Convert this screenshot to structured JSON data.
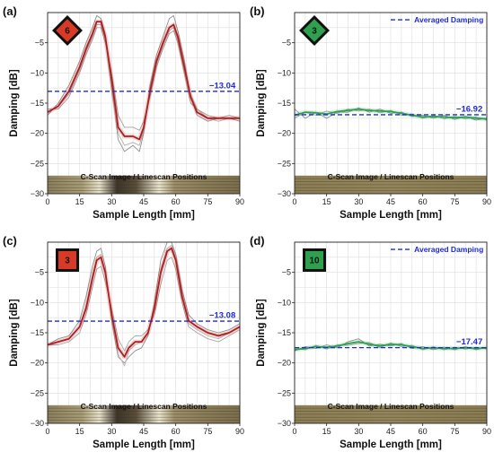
{
  "figure": {
    "panels": [
      {
        "letter": "(a)",
        "badge": {
          "number": "6",
          "shape": "diamond",
          "color": "#d93a26"
        },
        "x_label": "Sample Length [mm]",
        "y_label": "Damping [dB]",
        "averaged_value": "−13.04",
        "legend_label": "",
        "cscan_label": "C-Scan Image / Linescan Positions",
        "cscan_style": "defect"
      },
      {
        "letter": "(b)",
        "badge": {
          "number": "3",
          "shape": "diamond",
          "color": "#2ea04f"
        },
        "x_label": "Sample Length [mm]",
        "y_label": "Damping [dB]",
        "averaged_value": "−16.92",
        "legend_label": "Averaged Damping",
        "cscan_label": "C-Scan Image / Linescan Positions",
        "cscan_style": "uniform"
      },
      {
        "letter": "(c)",
        "badge": {
          "number": "3",
          "shape": "square",
          "color": "#d93a26"
        },
        "x_label": "Sample Length [mm]",
        "y_label": "Damping [dB]",
        "averaged_value": "−13.08",
        "legend_label": "",
        "cscan_label": "C-Scan Image / Linescan Positions",
        "cscan_style": "defect"
      },
      {
        "letter": "(d)",
        "badge": {
          "number": "10",
          "shape": "square",
          "color": "#2ea04f"
        },
        "x_label": "Sample Length [mm]",
        "y_label": "Damping [dB]",
        "averaged_value": "−17.47",
        "legend_label": "Averaged Damping",
        "cscan_label": "C-Scan Image / Linescan Positions",
        "cscan_style": "uniform"
      }
    ]
  },
  "chart_data": [
    {
      "type": "line",
      "panel": "(a)",
      "xlabel": "Sample Length [mm]",
      "ylabel": "Damping [dB]",
      "xlim": [
        0,
        90
      ],
      "ylim": [
        -30,
        0
      ],
      "xticks": [
        0,
        15,
        30,
        45,
        60,
        75,
        90
      ],
      "yticks": [
        -30,
        -25,
        -20,
        -15,
        -10,
        -5
      ],
      "grid": true,
      "averaged_damping": -13.04,
      "series": [
        {
          "color": "#b01e1e",
          "x": [
            0,
            5,
            10,
            15,
            18,
            21,
            23,
            25,
            27,
            30,
            33,
            36,
            40,
            43,
            45,
            48,
            51,
            54,
            57,
            59,
            61,
            64,
            67,
            70,
            75,
            80,
            85,
            90
          ],
          "y": [
            -16.5,
            -15.5,
            -13,
            -9,
            -6,
            -3.5,
            -1.5,
            -1.5,
            -4,
            -11,
            -19,
            -20.5,
            -20.5,
            -21,
            -19,
            -13,
            -8,
            -5,
            -2.5,
            -2,
            -4,
            -9,
            -14,
            -16.5,
            -17.5,
            -17.5,
            -17.5,
            -17.5
          ]
        },
        {
          "color": "#909090",
          "x": [
            0,
            5,
            10,
            15,
            18,
            21,
            23,
            25,
            27,
            30,
            33,
            36,
            40,
            43,
            45,
            48,
            51,
            54,
            57,
            59,
            61,
            64,
            67,
            70,
            75,
            80,
            85,
            90
          ],
          "y": [
            -17,
            -15,
            -12,
            -8,
            -5,
            -2.5,
            -0.5,
            -1,
            -3.5,
            -12,
            -21,
            -23,
            -22,
            -23,
            -20,
            -12,
            -7,
            -4,
            -1,
            -0.5,
            -3,
            -8,
            -14,
            -17,
            -18,
            -17.5,
            -17.5,
            -18
          ]
        },
        {
          "color": "#a0a0a0",
          "x": [
            0,
            5,
            10,
            15,
            18,
            21,
            23,
            25,
            27,
            30,
            33,
            36,
            40,
            43,
            45,
            48,
            51,
            54,
            57,
            59,
            61,
            64,
            67,
            70,
            75,
            80,
            85,
            90
          ],
          "y": [
            -16,
            -16,
            -14,
            -10,
            -7,
            -4.5,
            -2.5,
            -2.5,
            -5,
            -10,
            -17,
            -19,
            -19,
            -19.5,
            -18,
            -14,
            -9,
            -6,
            -3.5,
            -3,
            -5,
            -10,
            -15,
            -16,
            -17,
            -17.5,
            -17,
            -17.5
          ]
        },
        {
          "color": "#b0b0b0",
          "x": [
            0,
            5,
            10,
            15,
            18,
            21,
            23,
            25,
            27,
            30,
            33,
            36,
            40,
            43,
            45,
            48,
            51,
            54,
            57,
            59,
            61,
            64,
            67,
            70,
            75,
            80,
            85,
            90
          ],
          "y": [
            -16.5,
            -15.5,
            -13.5,
            -9.5,
            -6.5,
            -4,
            -2,
            -2,
            -4.5,
            -13,
            -20,
            -22,
            -21.5,
            -22,
            -19.5,
            -13.5,
            -8.5,
            -5.5,
            -3,
            -2.5,
            -4.5,
            -9.5,
            -13.5,
            -16,
            -17.5,
            -18,
            -17.5,
            -17.5
          ]
        }
      ]
    },
    {
      "type": "line",
      "panel": "(b)",
      "xlabel": "Sample Length [mm]",
      "ylabel": "Damping [dB]",
      "xlim": [
        0,
        90
      ],
      "ylim": [
        -30,
        0
      ],
      "xticks": [
        0,
        15,
        30,
        45,
        60,
        75,
        90
      ],
      "yticks": [
        -30,
        -25,
        -20,
        -15,
        -10,
        -5
      ],
      "grid": true,
      "legend": "top-right",
      "averaged_damping": -16.92,
      "series": [
        {
          "color": "#2ea04f",
          "x": [
            0,
            5,
            10,
            15,
            20,
            25,
            30,
            35,
            40,
            45,
            50,
            55,
            60,
            65,
            70,
            75,
            80,
            85,
            90
          ],
          "y": [
            -17,
            -16.5,
            -16.6,
            -16.8,
            -16.4,
            -16.2,
            -16,
            -16.2,
            -16.3,
            -16.4,
            -16.7,
            -17,
            -17.3,
            -17.2,
            -17.3,
            -17.4,
            -17.3,
            -17.5,
            -17.6
          ]
        },
        {
          "color": "#909090",
          "x": [
            0,
            5,
            10,
            15,
            20,
            25,
            30,
            35,
            40,
            45,
            50,
            55,
            60,
            65,
            70,
            75,
            80,
            85,
            90
          ],
          "y": [
            -16,
            -17.5,
            -16.5,
            -17.5,
            -16.5,
            -16.5,
            -15.8,
            -16.5,
            -16,
            -16.7,
            -16.5,
            -17.2,
            -17,
            -17.5,
            -17,
            -17.7,
            -17.2,
            -17.8,
            -17.5
          ]
        },
        {
          "color": "#a8a8a8",
          "x": [
            0,
            5,
            10,
            15,
            20,
            25,
            30,
            35,
            40,
            45,
            50,
            55,
            60,
            65,
            70,
            75,
            80,
            85,
            90
          ],
          "y": [
            -17.5,
            -16.5,
            -17,
            -16.3,
            -16.7,
            -16,
            -16.3,
            -16,
            -16.6,
            -16.2,
            -17,
            -16.8,
            -17.5,
            -17,
            -17.6,
            -17.2,
            -17.6,
            -17.3,
            -17.8
          ]
        }
      ]
    },
    {
      "type": "line",
      "panel": "(c)",
      "xlabel": "Sample Length [mm]",
      "ylabel": "Damping [dB]",
      "xlim": [
        0,
        90
      ],
      "ylim": [
        -30,
        0
      ],
      "xticks": [
        0,
        15,
        30,
        45,
        60,
        75,
        90
      ],
      "yticks": [
        -30,
        -25,
        -20,
        -15,
        -10,
        -5
      ],
      "grid": true,
      "averaged_damping": -13.08,
      "series": [
        {
          "color": "#b01e1e",
          "x": [
            0,
            5,
            10,
            15,
            18,
            21,
            23,
            25,
            27,
            30,
            33,
            36,
            38,
            41,
            44,
            47,
            50,
            53,
            56,
            58,
            60,
            63,
            66,
            70,
            75,
            80,
            85,
            90
          ],
          "y": [
            -17,
            -16.5,
            -16,
            -14,
            -11,
            -6,
            -3,
            -2.5,
            -5,
            -12,
            -17.5,
            -19,
            -17.5,
            -16.5,
            -16.5,
            -15,
            -11,
            -5,
            -1.5,
            -1,
            -3,
            -9,
            -13,
            -14,
            -15,
            -15.5,
            -15,
            -14
          ]
        },
        {
          "color": "#909090",
          "x": [
            0,
            5,
            10,
            15,
            18,
            21,
            23,
            25,
            27,
            30,
            33,
            36,
            38,
            41,
            44,
            47,
            50,
            53,
            56,
            58,
            60,
            63,
            66,
            70,
            75,
            80,
            85,
            90
          ],
          "y": [
            -17,
            -16,
            -15.5,
            -13,
            -9,
            -4,
            -1.5,
            -1,
            -4,
            -13,
            -19,
            -20,
            -19,
            -18,
            -17.5,
            -15.5,
            -10,
            -3,
            0,
            0,
            -2,
            -8,
            -12,
            -13.5,
            -14.5,
            -15,
            -14.5,
            -13.5
          ]
        },
        {
          "color": "#a8a8a8",
          "x": [
            0,
            5,
            10,
            15,
            18,
            21,
            23,
            25,
            27,
            30,
            33,
            36,
            38,
            41,
            44,
            47,
            50,
            53,
            56,
            58,
            60,
            63,
            66,
            70,
            75,
            80,
            85,
            90
          ],
          "y": [
            -17,
            -17,
            -16.5,
            -15,
            -12,
            -7.5,
            -4.5,
            -4,
            -6.5,
            -11,
            -16,
            -18,
            -16.5,
            -15.5,
            -15.5,
            -14.5,
            -12,
            -7,
            -3,
            -2.5,
            -4.5,
            -10,
            -14,
            -15,
            -16,
            -16.5,
            -15.5,
            -14.5
          ]
        },
        {
          "color": "#b8b8b8",
          "x": [
            0,
            5,
            10,
            15,
            18,
            21,
            23,
            25,
            27,
            30,
            33,
            36,
            38,
            41,
            44,
            47,
            50,
            53,
            56,
            58,
            60,
            63,
            66,
            70,
            75,
            80,
            85,
            90
          ],
          "y": [
            -17,
            -16.5,
            -16,
            -14,
            -10.5,
            -5.5,
            -2.5,
            -2,
            -5,
            -12.5,
            -18.5,
            -20.5,
            -18,
            -17,
            -16.5,
            -15,
            -11,
            -4.5,
            -1,
            -0.5,
            -2.5,
            -9,
            -13.5,
            -14.5,
            -15.5,
            -16,
            -15,
            -14
          ]
        }
      ]
    },
    {
      "type": "line",
      "panel": "(d)",
      "xlabel": "Sample Length [mm]",
      "ylabel": "Damping [dB]",
      "xlim": [
        0,
        90
      ],
      "ylim": [
        -30,
        0
      ],
      "xticks": [
        0,
        15,
        30,
        45,
        60,
        75,
        90
      ],
      "yticks": [
        -30,
        -25,
        -20,
        -15,
        -10,
        -5
      ],
      "grid": true,
      "legend": "top-right",
      "averaged_damping": -17.47,
      "series": [
        {
          "color": "#2ea04f",
          "x": [
            0,
            5,
            10,
            15,
            20,
            25,
            30,
            35,
            40,
            45,
            50,
            55,
            60,
            65,
            70,
            75,
            80,
            85,
            90
          ],
          "y": [
            -17.8,
            -17.6,
            -17.3,
            -17.4,
            -17.2,
            -16.8,
            -16.5,
            -16.9,
            -17.2,
            -16.9,
            -17,
            -17.3,
            -17.6,
            -17.5,
            -17.6,
            -17.6,
            -17.5,
            -17.6,
            -17.5
          ]
        },
        {
          "color": "#909090",
          "x": [
            0,
            5,
            10,
            15,
            20,
            25,
            30,
            35,
            40,
            45,
            50,
            55,
            60,
            65,
            70,
            75,
            80,
            85,
            90
          ],
          "y": [
            -18,
            -17.3,
            -17.6,
            -17,
            -17.5,
            -16.5,
            -16,
            -17.2,
            -16.9,
            -17.2,
            -16.8,
            -17.6,
            -17.3,
            -17.8,
            -17.4,
            -17.8,
            -17.3,
            -17.8,
            -17.4
          ]
        },
        {
          "color": "#a8a8a8",
          "x": [
            0,
            5,
            10,
            15,
            20,
            25,
            30,
            35,
            40,
            45,
            50,
            55,
            60,
            65,
            70,
            75,
            80,
            85,
            90
          ],
          "y": [
            -17.5,
            -17.8,
            -17.1,
            -17.7,
            -17,
            -17.1,
            -16.8,
            -16.6,
            -17.5,
            -16.7,
            -17.3,
            -17.1,
            -17.8,
            -17.3,
            -17.8,
            -17.4,
            -17.7,
            -17.4,
            -17.7
          ]
        }
      ]
    }
  ]
}
